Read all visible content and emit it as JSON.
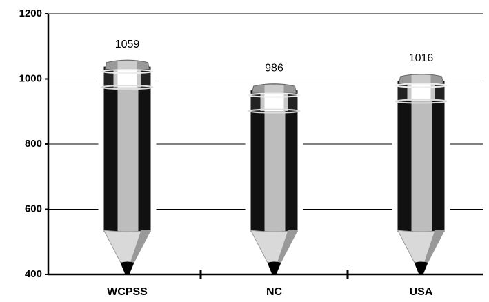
{
  "chart_data": {
    "type": "bar",
    "categories": [
      "WCPSS",
      "NC",
      "USA"
    ],
    "values": [
      1059,
      986,
      1016
    ],
    "ylim": [
      400,
      1200
    ],
    "yticks": [
      400,
      600,
      800,
      1000,
      1200
    ],
    "grid": true
  }
}
